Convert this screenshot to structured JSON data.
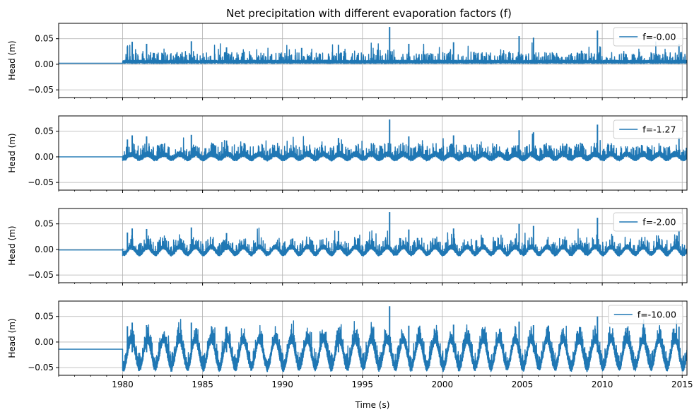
{
  "chart_data": {
    "type": "line",
    "title": "Net precipitation with different evaporation factors (f)",
    "xlabel": "Time (s)",
    "ylabel": "Head (m)",
    "xlim": [
      1976.0,
      2015.3
    ],
    "ylim": [
      -0.065,
      0.08
    ],
    "x_ticks": [
      1980,
      1985,
      1990,
      1995,
      2000,
      2005,
      2010,
      2015
    ],
    "y_ticks": [
      -0.05,
      0.0,
      0.05
    ],
    "y_tick_labels": [
      "−0.05",
      "0.00",
      "0.05"
    ],
    "grid": true,
    "legend_position": "top-right",
    "line_color": "#1f77b4",
    "series": [
      {
        "name": "f=-0.00",
        "pre_1980_value": 0.002,
        "baseline_range": [
          0.001,
          0.012
        ],
        "seasonal_amplitude": 0.0,
        "peaks": [
          {
            "x": 1980.3,
            "y": 0.035
          },
          {
            "x": 1980.6,
            "y": 0.044
          },
          {
            "x": 1981.5,
            "y": 0.04
          },
          {
            "x": 1984.3,
            "y": 0.045
          },
          {
            "x": 1986.5,
            "y": 0.033
          },
          {
            "x": 1991.2,
            "y": 0.032
          },
          {
            "x": 1993.5,
            "y": 0.038
          },
          {
            "x": 1996.7,
            "y": 0.073
          },
          {
            "x": 1997.9,
            "y": 0.04
          },
          {
            "x": 2000.7,
            "y": 0.043
          },
          {
            "x": 2004.8,
            "y": 0.055
          },
          {
            "x": 2005.7,
            "y": 0.052
          },
          {
            "x": 2009.7,
            "y": 0.066
          },
          {
            "x": 2014.8,
            "y": 0.04
          }
        ]
      },
      {
        "name": "f=-1.27",
        "pre_1980_value": 0.0,
        "baseline_range": [
          -0.007,
          0.01
        ],
        "seasonal_amplitude": 0.005,
        "peaks": [
          {
            "x": 1980.3,
            "y": 0.034
          },
          {
            "x": 1980.6,
            "y": 0.042
          },
          {
            "x": 1981.5,
            "y": 0.04
          },
          {
            "x": 1984.3,
            "y": 0.043
          },
          {
            "x": 1986.5,
            "y": 0.032
          },
          {
            "x": 1993.5,
            "y": 0.037
          },
          {
            "x": 1996.7,
            "y": 0.073
          },
          {
            "x": 1997.9,
            "y": 0.04
          },
          {
            "x": 2000.7,
            "y": 0.042
          },
          {
            "x": 2004.8,
            "y": 0.052
          },
          {
            "x": 2005.7,
            "y": 0.048
          },
          {
            "x": 2009.7,
            "y": 0.063
          },
          {
            "x": 2014.8,
            "y": 0.038
          }
        ]
      },
      {
        "name": "f=-2.00",
        "pre_1980_value": -0.001,
        "baseline_range": [
          -0.011,
          0.008
        ],
        "seasonal_amplitude": 0.008,
        "peaks": [
          {
            "x": 1980.3,
            "y": 0.033
          },
          {
            "x": 1980.6,
            "y": 0.041
          },
          {
            "x": 1981.5,
            "y": 0.04
          },
          {
            "x": 1984.3,
            "y": 0.043
          },
          {
            "x": 1986.5,
            "y": 0.032
          },
          {
            "x": 1993.5,
            "y": 0.036
          },
          {
            "x": 1996.7,
            "y": 0.073
          },
          {
            "x": 1997.9,
            "y": 0.039
          },
          {
            "x": 2000.7,
            "y": 0.041
          },
          {
            "x": 2004.8,
            "y": 0.05
          },
          {
            "x": 2005.7,
            "y": 0.046
          },
          {
            "x": 2009.7,
            "y": 0.062
          },
          {
            "x": 2014.8,
            "y": 0.037
          }
        ]
      },
      {
        "name": "f=-10.00",
        "pre_1980_value": -0.014,
        "baseline_range": [
          -0.05,
          0.01
        ],
        "seasonal_amplitude": 0.032,
        "peaks": [
          {
            "x": 1980.3,
            "y": 0.031
          },
          {
            "x": 1980.6,
            "y": 0.038
          },
          {
            "x": 1981.5,
            "y": 0.033
          },
          {
            "x": 1984.3,
            "y": 0.038
          },
          {
            "x": 1986.5,
            "y": 0.03
          },
          {
            "x": 1993.5,
            "y": 0.028
          },
          {
            "x": 1996.7,
            "y": 0.07
          },
          {
            "x": 1997.9,
            "y": 0.032
          },
          {
            "x": 2000.7,
            "y": 0.034
          },
          {
            "x": 2004.8,
            "y": 0.04
          },
          {
            "x": 2005.7,
            "y": 0.033
          },
          {
            "x": 2009.7,
            "y": 0.05
          },
          {
            "x": 2014.8,
            "y": 0.03
          }
        ]
      }
    ]
  }
}
